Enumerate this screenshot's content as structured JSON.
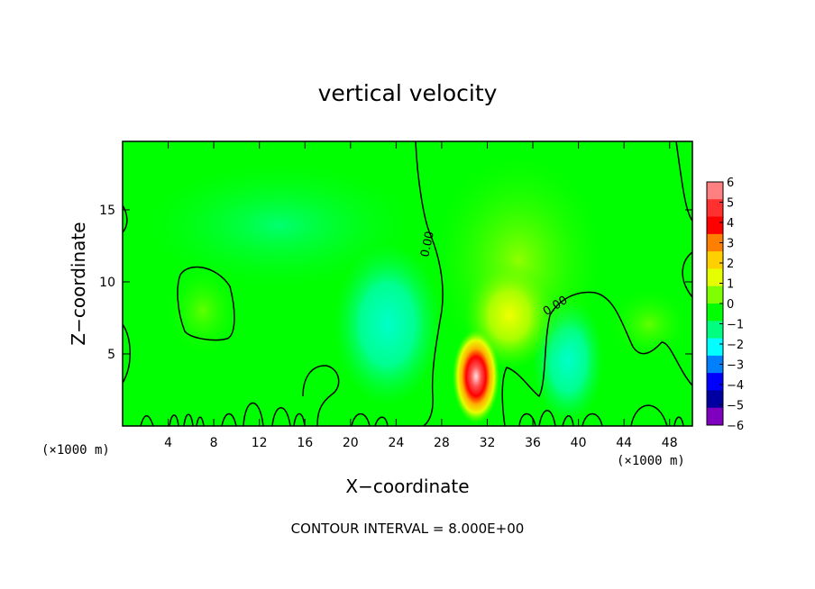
{
  "chart_data": {
    "type": "heatmap",
    "title": "vertical velocity",
    "xlabel": "X−coordinate",
    "ylabel": "Z−coordinate",
    "x_unit_left": "(×1000 m)",
    "x_unit_right": "(×1000 m)",
    "xlim": [
      0,
      50
    ],
    "ylim": [
      0,
      19.75
    ],
    "xticks": [
      4,
      8,
      12,
      16,
      20,
      24,
      28,
      32,
      36,
      40,
      44,
      48
    ],
    "yticks": [
      5,
      10,
      15
    ],
    "colorbar": {
      "levels": [
        6,
        5,
        4,
        3,
        2,
        1,
        0,
        -1,
        -2,
        -3,
        -4,
        -5,
        -6
      ],
      "labels": [
        "6",
        "5",
        "4",
        "3",
        "2",
        "1",
        "0",
        "−1",
        "−2",
        "−3",
        "−4",
        "−5",
        "−6"
      ],
      "colors": [
        "#ff8080",
        "#ff3030",
        "#ff0000",
        "#ff8000",
        "#ffd000",
        "#e6ff00",
        "#80ff00",
        "#00ff00",
        "#00ff80",
        "#00ffff",
        "#0080ff",
        "#0000ff",
        "#0000a0",
        "#8000c0"
      ]
    },
    "contour_labels": [
      "0.00",
      "0.00"
    ],
    "contour_interval": "CONTOUR INTERVAL = 8.000E+00",
    "features": [
      {
        "kind": "updraft_max",
        "x": 31,
        "z": 3,
        "value": 5.5
      },
      {
        "kind": "updraft",
        "x": 34,
        "z": 7.5,
        "value": 2
      },
      {
        "kind": "downdraft",
        "x": 24,
        "z": 6,
        "value": -1.5
      },
      {
        "kind": "downdraft",
        "x": 39,
        "z": 4.5,
        "value": -1.5
      },
      {
        "kind": "weak_updraft",
        "x": 6,
        "z": 8,
        "value": 0.6
      },
      {
        "kind": "weak_updraft",
        "x": 45,
        "z": 7,
        "value": 0.5
      }
    ]
  }
}
